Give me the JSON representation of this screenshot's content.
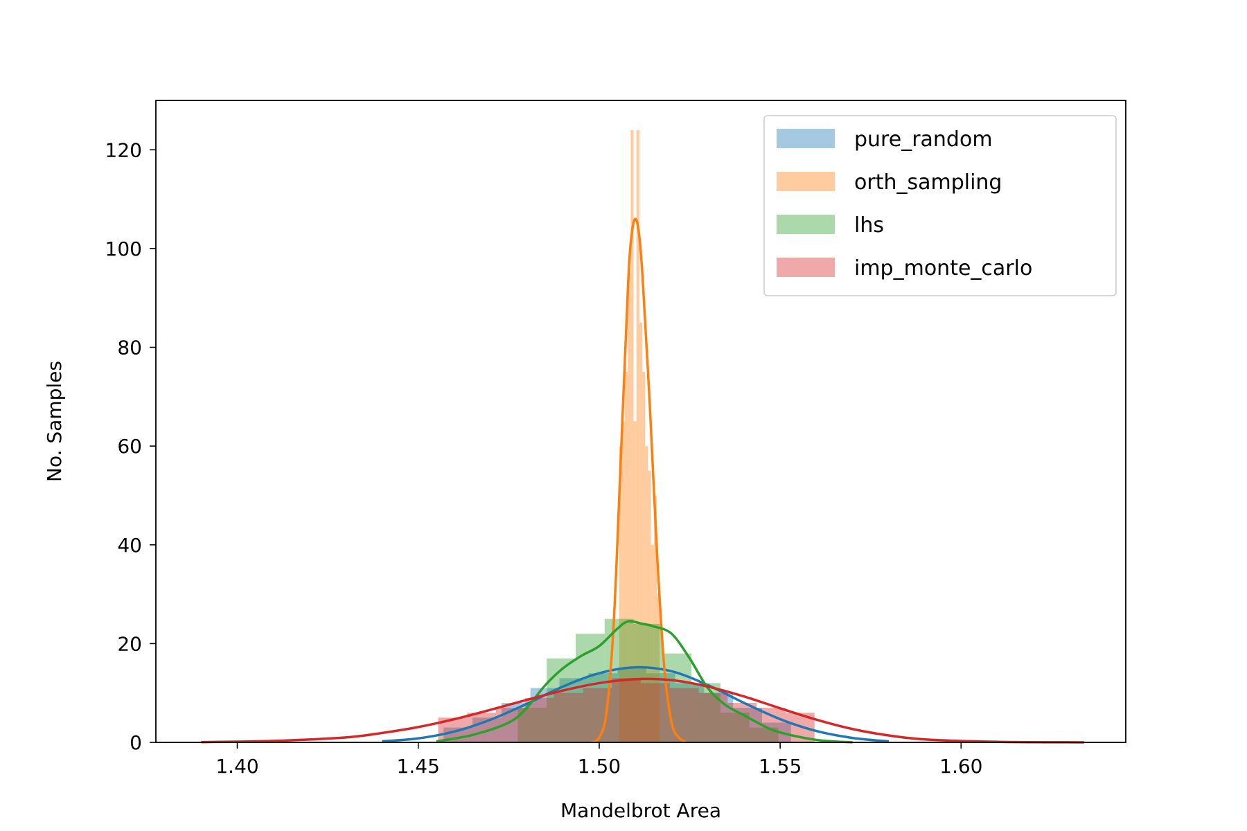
{
  "chart_data": {
    "type": "histogram-kde",
    "xlabel": "Mandelbrot Area",
    "ylabel": "No. Samples",
    "xlim": [
      1.3775,
      1.6455
    ],
    "ylim": [
      0,
      130
    ],
    "xticks": [
      1.4,
      1.45,
      1.5,
      1.55,
      1.6
    ],
    "xtick_labels": [
      "1.40",
      "1.45",
      "1.50",
      "1.55",
      "1.60"
    ],
    "yticks": [
      0,
      20,
      40,
      60,
      80,
      100,
      120
    ],
    "ytick_labels": [
      "0",
      "20",
      "40",
      "60",
      "80",
      "100",
      "120"
    ],
    "legend_position": "top-right",
    "grid": false,
    "series": [
      {
        "name": "pure_random",
        "color": "#1f77b4",
        "hist": {
          "edges": [
            1.457,
            1.465,
            1.473,
            1.481,
            1.489,
            1.497,
            1.505,
            1.513,
            1.521,
            1.529,
            1.537,
            1.545,
            1.553
          ],
          "counts": [
            3,
            5,
            8,
            11,
            13,
            14,
            15,
            14,
            12,
            10,
            7,
            4
          ]
        },
        "kde": {
          "x": [
            1.44,
            1.45,
            1.46,
            1.47,
            1.48,
            1.49,
            1.5,
            1.51,
            1.52,
            1.53,
            1.54,
            1.55,
            1.56,
            1.57,
            1.58
          ],
          "y": [
            0.2,
            0.8,
            2.2,
            4.6,
            7.8,
            11.3,
            14.0,
            15.2,
            14.4,
            11.6,
            8.0,
            4.7,
            2.3,
            0.9,
            0.2
          ]
        }
      },
      {
        "name": "orth_sampling",
        "color": "#ff7f0e",
        "hist": {
          "edges": [
            1.5055,
            1.5063,
            1.5071,
            1.5079,
            1.5087,
            1.5095,
            1.5103,
            1.5111,
            1.5119,
            1.5127,
            1.5135,
            1.5143,
            1.5151,
            1.5159,
            1.5167
          ],
          "counts": [
            60,
            65,
            75,
            95,
            124,
            65,
            124,
            85,
            75,
            60,
            55,
            40,
            50,
            30
          ]
        },
        "kde": {
          "x": [
            1.498,
            1.5,
            1.502,
            1.504,
            1.506,
            1.508,
            1.509,
            1.51,
            1.511,
            1.512,
            1.514,
            1.516,
            1.518,
            1.52,
            1.522,
            1.524
          ],
          "y": [
            0,
            1,
            6,
            24,
            58,
            93,
            103,
            106,
            103,
            94,
            68,
            38,
            15,
            4,
            1,
            0
          ]
        }
      },
      {
        "name": "lhs",
        "color": "#2ca02c",
        "hist": {
          "edges": [
            1.4775,
            1.4855,
            1.4935,
            1.5015,
            1.5095,
            1.5175,
            1.5255,
            1.5335,
            1.5415,
            1.5495
          ],
          "counts": [
            7,
            17,
            22,
            25,
            24,
            18,
            12,
            6,
            3
          ]
        },
        "kde": {
          "x": [
            1.455,
            1.465,
            1.475,
            1.48,
            1.485,
            1.49,
            1.495,
            1.5,
            1.505,
            1.508,
            1.512,
            1.515,
            1.52,
            1.525,
            1.53,
            1.535,
            1.54,
            1.545,
            1.55,
            1.56,
            1.57
          ],
          "y": [
            0.2,
            1.5,
            4.0,
            7.0,
            11.5,
            15.0,
            17.5,
            19.5,
            23.0,
            24.5,
            24.0,
            23.5,
            22.0,
            17.0,
            11.0,
            7.5,
            5.5,
            3.5,
            2.0,
            0.5,
            0.0
          ]
        }
      },
      {
        "name": "imp_monte_carlo",
        "color": "#d62728",
        "hist": {
          "edges": [
            1.4555,
            1.4635,
            1.4715,
            1.4795,
            1.4875,
            1.4955,
            1.5035,
            1.5115,
            1.5195,
            1.5275,
            1.5355,
            1.5435,
            1.5515,
            1.5595
          ],
          "counts": [
            5,
            6,
            7,
            9,
            10,
            11,
            13,
            12,
            11,
            10,
            8,
            7,
            6
          ]
        },
        "kde": {
          "x": [
            1.39,
            1.41,
            1.43,
            1.44,
            1.45,
            1.46,
            1.47,
            1.48,
            1.49,
            1.5,
            1.51,
            1.52,
            1.53,
            1.54,
            1.55,
            1.56,
            1.57,
            1.58,
            1.59,
            1.61,
            1.634
          ],
          "y": [
            0.05,
            0.3,
            1.0,
            1.9,
            3.1,
            4.7,
            6.6,
            8.6,
            10.5,
            12.0,
            12.8,
            12.6,
            11.3,
            9.3,
            6.9,
            4.6,
            2.7,
            1.4,
            0.6,
            0.1,
            0.0
          ]
        }
      }
    ]
  }
}
